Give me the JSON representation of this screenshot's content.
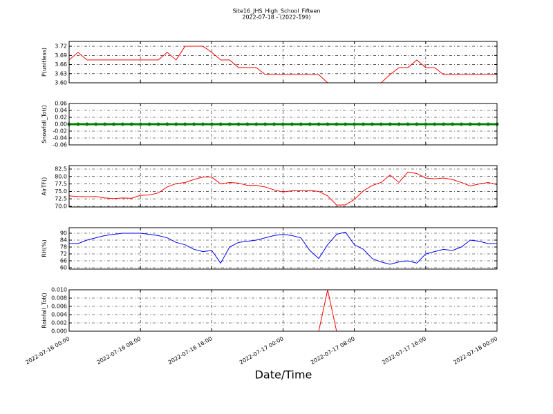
{
  "chart_data": [
    {
      "type": "line",
      "title": "Site16_JHS_High_School_Fifteen",
      "subtitle": "2022-07-18 - (2022-199)",
      "ylabel": "P(unitless)",
      "color": "#ff0000",
      "grid": true,
      "x": [
        "2022-07-16 00:00",
        "2022-07-16 01:00",
        "2022-07-16 02:00",
        "2022-07-16 03:00",
        "2022-07-16 04:00",
        "2022-07-16 05:00",
        "2022-07-16 06:00",
        "2022-07-16 07:00",
        "2022-07-16 08:00",
        "2022-07-16 09:00",
        "2022-07-16 10:00",
        "2022-07-16 11:00",
        "2022-07-16 12:00",
        "2022-07-16 13:00",
        "2022-07-16 14:00",
        "2022-07-16 15:00",
        "2022-07-16 16:00",
        "2022-07-16 17:00",
        "2022-07-16 18:00",
        "2022-07-16 19:00",
        "2022-07-16 20:00",
        "2022-07-16 21:00",
        "2022-07-16 22:00",
        "2022-07-16 23:00",
        "2022-07-17 00:00",
        "2022-07-17 01:00",
        "2022-07-17 02:00",
        "2022-07-17 03:00",
        "2022-07-17 04:00",
        "2022-07-17 05:00",
        "2022-07-17 06:00",
        "2022-07-17 07:00",
        "2022-07-17 08:00",
        "2022-07-17 09:00",
        "2022-07-17 10:00",
        "2022-07-17 11:00",
        "2022-07-17 12:00",
        "2022-07-17 13:00",
        "2022-07-17 14:00",
        "2022-07-17 15:00",
        "2022-07-17 16:00",
        "2022-07-17 17:00",
        "2022-07-17 18:00",
        "2022-07-17 19:00",
        "2022-07-17 20:00",
        "2022-07-17 21:00",
        "2022-07-17 22:00",
        "2022-07-17 23:00",
        "2022-07-18 00:00"
      ],
      "values": [
        3.675,
        3.7,
        3.675,
        3.675,
        3.675,
        3.675,
        3.675,
        3.675,
        3.675,
        3.675,
        3.675,
        3.7,
        3.675,
        3.72,
        3.72,
        3.72,
        3.7,
        3.675,
        3.675,
        3.65,
        3.65,
        3.65,
        3.627,
        3.627,
        3.627,
        3.627,
        3.627,
        3.627,
        3.627,
        3.6,
        3.6,
        3.6,
        3.6,
        3.6,
        3.6,
        3.6,
        3.627,
        3.65,
        3.65,
        3.675,
        3.65,
        3.65,
        3.627,
        3.627,
        3.627,
        3.627,
        3.627,
        3.627,
        3.627
      ],
      "xlim": [
        "2022-07-16 00:00",
        "2022-07-18 00:00"
      ],
      "xticks": [
        "2022-07-16 00:00",
        "2022-07-16 08:00",
        "2022-07-16 16:00",
        "2022-07-17 00:00",
        "2022-07-17 08:00",
        "2022-07-17 16:00",
        "2022-07-18 00:00"
      ],
      "ylim": [
        3.6,
        3.736
      ],
      "yticks": [
        {
          "value": 3.6,
          "label": "3.60"
        },
        3.63,
        3.66,
        3.69,
        3.72
      ]
    },
    {
      "type": "line",
      "ylabel": "Snowfall_Tot()",
      "color": "#008000",
      "markers": true,
      "grid": true,
      "x": [
        "2022-07-16 00:00",
        "2022-07-16 01:00",
        "2022-07-16 02:00",
        "2022-07-16 03:00",
        "2022-07-16 04:00",
        "2022-07-16 05:00",
        "2022-07-16 06:00",
        "2022-07-16 07:00",
        "2022-07-16 08:00",
        "2022-07-16 09:00",
        "2022-07-16 10:00",
        "2022-07-16 11:00",
        "2022-07-16 12:00",
        "2022-07-16 13:00",
        "2022-07-16 14:00",
        "2022-07-16 15:00",
        "2022-07-16 16:00",
        "2022-07-16 17:00",
        "2022-07-16 18:00",
        "2022-07-16 19:00",
        "2022-07-16 20:00",
        "2022-07-16 21:00",
        "2022-07-16 22:00",
        "2022-07-16 23:00",
        "2022-07-17 00:00",
        "2022-07-17 01:00",
        "2022-07-17 02:00",
        "2022-07-17 03:00",
        "2022-07-17 04:00",
        "2022-07-17 05:00",
        "2022-07-17 06:00",
        "2022-07-17 07:00",
        "2022-07-17 08:00",
        "2022-07-17 09:00",
        "2022-07-17 10:00",
        "2022-07-17 11:00",
        "2022-07-17 12:00",
        "2022-07-17 13:00",
        "2022-07-17 14:00",
        "2022-07-17 15:00",
        "2022-07-17 16:00",
        "2022-07-17 17:00",
        "2022-07-17 18:00",
        "2022-07-17 19:00",
        "2022-07-17 20:00",
        "2022-07-17 21:00",
        "2022-07-17 22:00",
        "2022-07-17 23:00",
        "2022-07-18 00:00"
      ],
      "values": [
        0,
        0,
        0,
        0,
        0,
        0,
        0,
        0,
        0,
        0,
        0,
        0,
        0,
        0,
        0,
        0,
        0,
        0,
        0,
        0,
        0,
        0,
        0,
        0,
        0,
        0,
        0,
        0,
        0,
        0,
        0,
        0,
        0,
        0,
        0,
        0,
        0,
        0,
        0,
        0,
        0,
        0,
        0,
        0,
        0,
        0,
        0,
        0,
        0
      ],
      "xlim": [
        "2022-07-16 00:00",
        "2022-07-18 00:00"
      ],
      "xticks": [
        "2022-07-16 00:00",
        "2022-07-16 08:00",
        "2022-07-16 16:00",
        "2022-07-17 00:00",
        "2022-07-17 08:00",
        "2022-07-17 16:00",
        "2022-07-18 00:00"
      ],
      "ylim": [
        -0.06,
        0.06
      ],
      "yticks": [
        -0.06,
        -0.04,
        -0.02,
        {
          "value": 0,
          "label": "0.00"
        },
        0.02,
        0.04,
        0.06
      ]
    },
    {
      "type": "line",
      "ylabel": "AirTF()",
      "color": "#ff0000",
      "grid": true,
      "x": [
        "2022-07-16 00:00",
        "2022-07-16 01:00",
        "2022-07-16 02:00",
        "2022-07-16 03:00",
        "2022-07-16 04:00",
        "2022-07-16 05:00",
        "2022-07-16 06:00",
        "2022-07-16 07:00",
        "2022-07-16 08:00",
        "2022-07-16 09:00",
        "2022-07-16 10:00",
        "2022-07-16 11:00",
        "2022-07-16 12:00",
        "2022-07-16 13:00",
        "2022-07-16 14:00",
        "2022-07-16 15:00",
        "2022-07-16 16:00",
        "2022-07-16 17:00",
        "2022-07-16 18:00",
        "2022-07-16 19:00",
        "2022-07-16 20:00",
        "2022-07-16 21:00",
        "2022-07-16 22:00",
        "2022-07-16 23:00",
        "2022-07-17 00:00",
        "2022-07-17 01:00",
        "2022-07-17 02:00",
        "2022-07-17 03:00",
        "2022-07-17 04:00",
        "2022-07-17 05:00",
        "2022-07-17 06:00",
        "2022-07-17 07:00",
        "2022-07-17 08:00",
        "2022-07-17 09:00",
        "2022-07-17 10:00",
        "2022-07-17 11:00",
        "2022-07-17 12:00",
        "2022-07-17 13:00",
        "2022-07-17 14:00",
        "2022-07-17 15:00",
        "2022-07-17 16:00",
        "2022-07-17 17:00",
        "2022-07-17 18:00",
        "2022-07-17 19:00",
        "2022-07-17 20:00",
        "2022-07-17 21:00",
        "2022-07-17 22:00",
        "2022-07-17 23:00",
        "2022-07-18 00:00"
      ],
      "values": [
        73.5,
        73.3,
        73.2,
        73.3,
        72.8,
        72.6,
        72.8,
        72.7,
        73.7,
        73.8,
        74.5,
        76.5,
        77.6,
        78,
        79,
        79.8,
        79.8,
        77.5,
        78,
        77.8,
        77,
        77,
        76.5,
        75.5,
        74.8,
        75.2,
        75.2,
        75.3,
        75.0,
        73.5,
        70.4,
        70.5,
        72.3,
        75.2,
        77,
        78,
        80.5,
        78,
        81.5,
        81,
        79.5,
        79.2,
        79.5,
        79,
        78,
        76.8,
        77.5,
        78,
        77.3
      ],
      "xlim": [
        "2022-07-16 00:00",
        "2022-07-18 00:00"
      ],
      "xticks": [
        "2022-07-16 00:00",
        "2022-07-16 08:00",
        "2022-07-16 16:00",
        "2022-07-17 00:00",
        "2022-07-17 08:00",
        "2022-07-17 16:00",
        "2022-07-18 00:00"
      ],
      "ylim": [
        69.77,
        83.66
      ],
      "yticks": [
        {
          "value": 70,
          "label": "70.0"
        },
        72.5,
        {
          "value": 75,
          "label": "75.0"
        },
        77.5,
        {
          "value": 80,
          "label": "80.0"
        },
        82.5
      ]
    },
    {
      "type": "line",
      "ylabel": "RH(%)",
      "color": "#0000ff",
      "grid": true,
      "x": [
        "2022-07-16 00:00",
        "2022-07-16 01:00",
        "2022-07-16 02:00",
        "2022-07-16 03:00",
        "2022-07-16 04:00",
        "2022-07-16 05:00",
        "2022-07-16 06:00",
        "2022-07-16 07:00",
        "2022-07-16 08:00",
        "2022-07-16 09:00",
        "2022-07-16 10:00",
        "2022-07-16 11:00",
        "2022-07-16 12:00",
        "2022-07-16 13:00",
        "2022-07-16 14:00",
        "2022-07-16 15:00",
        "2022-07-16 16:00",
        "2022-07-16 17:00",
        "2022-07-16 18:00",
        "2022-07-16 19:00",
        "2022-07-16 20:00",
        "2022-07-16 21:00",
        "2022-07-16 22:00",
        "2022-07-16 23:00",
        "2022-07-17 00:00",
        "2022-07-17 01:00",
        "2022-07-17 02:00",
        "2022-07-17 03:00",
        "2022-07-17 04:00",
        "2022-07-17 05:00",
        "2022-07-17 06:00",
        "2022-07-17 07:00",
        "2022-07-17 08:00",
        "2022-07-17 09:00",
        "2022-07-17 10:00",
        "2022-07-17 11:00",
        "2022-07-17 12:00",
        "2022-07-17 13:00",
        "2022-07-17 14:00",
        "2022-07-17 15:00",
        "2022-07-17 16:00",
        "2022-07-17 17:00",
        "2022-07-17 18:00",
        "2022-07-17 19:00",
        "2022-07-17 20:00",
        "2022-07-17 21:00",
        "2022-07-17 22:00",
        "2022-07-17 23:00",
        "2022-07-18 00:00"
      ],
      "values": [
        81,
        81,
        84,
        86,
        88,
        89,
        90,
        90,
        90,
        89,
        88,
        86,
        82,
        80,
        76,
        74,
        75,
        64,
        78,
        82,
        83,
        84,
        86,
        88,
        89,
        88,
        86,
        75,
        68,
        80,
        89,
        91,
        80,
        76,
        68,
        65,
        63,
        65,
        66,
        64,
        72,
        74,
        76,
        75,
        78,
        84,
        83,
        81,
        81
      ],
      "xlim": [
        "2022-07-16 00:00",
        "2022-07-18 00:00"
      ],
      "xticks": [
        "2022-07-16 00:00",
        "2022-07-16 08:00",
        "2022-07-16 16:00",
        "2022-07-17 00:00",
        "2022-07-17 08:00",
        "2022-07-17 16:00",
        "2022-07-18 00:00"
      ],
      "ylim": [
        58.8,
        94.8
      ],
      "yticks": [
        60,
        66,
        72,
        78,
        84,
        90
      ]
    },
    {
      "type": "line",
      "ylabel": "Rainfall_Tot()",
      "xlabel": "Date/Time",
      "color": "#ff0000",
      "grid": true,
      "x": [
        "2022-07-16 00:00",
        "2022-07-16 01:00",
        "2022-07-16 02:00",
        "2022-07-16 03:00",
        "2022-07-16 04:00",
        "2022-07-16 05:00",
        "2022-07-16 06:00",
        "2022-07-16 07:00",
        "2022-07-16 08:00",
        "2022-07-16 09:00",
        "2022-07-16 10:00",
        "2022-07-16 11:00",
        "2022-07-16 12:00",
        "2022-07-16 13:00",
        "2022-07-16 14:00",
        "2022-07-16 15:00",
        "2022-07-16 16:00",
        "2022-07-16 17:00",
        "2022-07-16 18:00",
        "2022-07-16 19:00",
        "2022-07-16 20:00",
        "2022-07-16 21:00",
        "2022-07-16 22:00",
        "2022-07-16 23:00",
        "2022-07-17 00:00",
        "2022-07-17 01:00",
        "2022-07-17 02:00",
        "2022-07-17 03:00",
        "2022-07-17 04:00",
        "2022-07-17 05:00",
        "2022-07-17 06:00",
        "2022-07-17 07:00",
        "2022-07-17 08:00",
        "2022-07-17 09:00",
        "2022-07-17 10:00",
        "2022-07-17 11:00",
        "2022-07-17 12:00",
        "2022-07-17 13:00",
        "2022-07-17 14:00",
        "2022-07-17 15:00",
        "2022-07-17 16:00",
        "2022-07-17 17:00",
        "2022-07-17 18:00",
        "2022-07-17 19:00",
        "2022-07-17 20:00",
        "2022-07-17 21:00",
        "2022-07-17 22:00",
        "2022-07-17 23:00",
        "2022-07-18 00:00"
      ],
      "values": [
        0,
        0,
        0,
        0,
        0,
        0,
        0,
        0,
        0,
        0,
        0,
        0,
        0,
        0,
        0,
        0,
        0,
        0,
        0,
        0,
        0,
        0,
        0,
        0,
        0,
        0,
        0,
        0,
        0,
        0.01,
        0,
        0,
        0,
        0,
        0,
        0,
        0,
        0,
        0,
        0,
        0,
        0,
        0,
        0,
        0,
        0,
        0,
        0,
        0
      ],
      "xlim": [
        "2022-07-16 00:00",
        "2022-07-18 00:00"
      ],
      "xticks": [
        "2022-07-16 00:00",
        "2022-07-16 08:00",
        "2022-07-16 16:00",
        "2022-07-17 00:00",
        "2022-07-17 08:00",
        "2022-07-17 16:00",
        "2022-07-18 00:00"
      ],
      "ylim": [
        0,
        0.01
      ],
      "yticks": [
        {
          "value": 0,
          "label": "0.000"
        },
        0.002,
        0.004,
        0.006,
        0.008,
        {
          "value": 0.01,
          "label": "0.010"
        }
      ]
    }
  ]
}
